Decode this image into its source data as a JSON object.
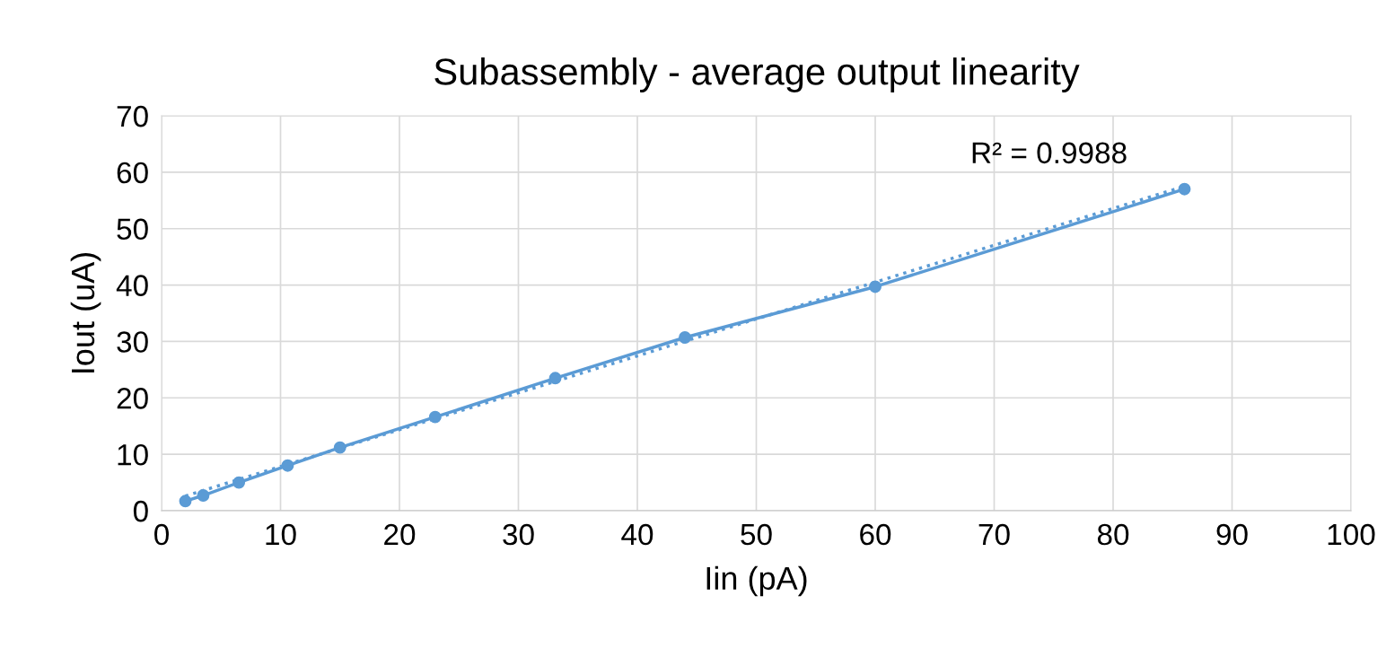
{
  "chart_data": {
    "type": "line",
    "title": "Subassembly - average output linearity",
    "xlabel": "Iin (pA)",
    "ylabel": "Iout (uA)",
    "series": [
      {
        "color": "#5b9bd5",
        "marker": "circle",
        "line_style": "solid",
        "x": [
          2,
          3.5,
          6.5,
          10.6,
          15,
          23,
          33.1,
          44,
          60,
          86
        ],
        "values": [
          1.7,
          2.7,
          5.0,
          8.0,
          11.2,
          16.6,
          23.5,
          30.7,
          39.7,
          57.0
        ]
      },
      {
        "color": "#5b9bd5",
        "marker": "none",
        "line_style": "dotted",
        "x": [
          2,
          86
        ],
        "values": [
          2.6,
          57.5
        ]
      }
    ],
    "annotations": [
      "R² = 0.9988"
    ],
    "xlim": [
      0,
      100
    ],
    "xticks": [
      0,
      10,
      20,
      30,
      40,
      50,
      60,
      70,
      80,
      90,
      100
    ],
    "ylim": [
      0,
      70
    ],
    "yticks": [
      0,
      10,
      20,
      30,
      40,
      50,
      60,
      70
    ],
    "grid": true,
    "legend": false
  }
}
